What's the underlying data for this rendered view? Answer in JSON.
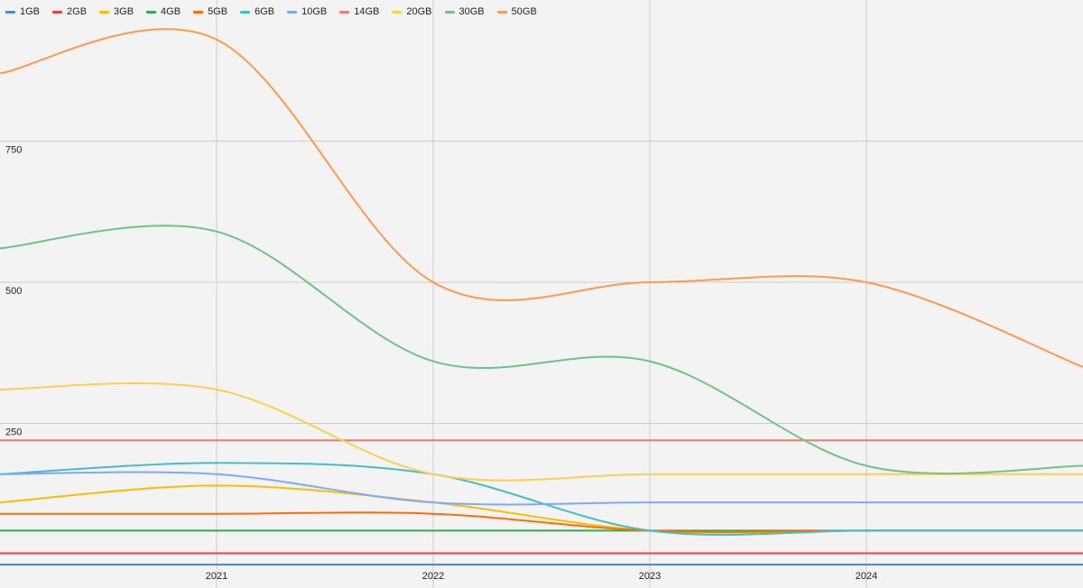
{
  "chart_data": {
    "type": "line",
    "title": "",
    "xlabel": "",
    "ylabel": "",
    "ylim": [
      0,
      1000
    ],
    "xlim": [
      2020.0,
      2025.0
    ],
    "x_ticks": [
      "2021",
      "2022",
      "2023",
      "2024"
    ],
    "x_tick_values": [
      2021,
      2022,
      2023,
      2024
    ],
    "y_ticks": [
      "250",
      "500",
      "750"
    ],
    "y_tick_values": [
      250,
      500,
      750
    ],
    "grid": true,
    "legend_position": "top-left",
    "series": [
      {
        "name": "1GB",
        "color": "#4a86e8",
        "x": [
          2020.0,
          2021,
          2022,
          2023,
          2024,
          2025
        ],
        "y": [
          0,
          0,
          0,
          0,
          0,
          0
        ]
      },
      {
        "name": "2GB",
        "color": "#ea4335",
        "x": [
          2020.0,
          2021,
          2022,
          2023,
          2024,
          2025
        ],
        "y": [
          20,
          20,
          20,
          20,
          20,
          20
        ]
      },
      {
        "name": "3GB",
        "color": "#fbbc04",
        "x": [
          2020.0,
          2021,
          2022,
          2023,
          2024,
          2025
        ],
        "y": [
          110,
          140,
          110,
          60,
          60,
          60
        ]
      },
      {
        "name": "4GB",
        "color": "#34a853",
        "x": [
          2020.0,
          2021,
          2022,
          2023,
          2024,
          2025
        ],
        "y": [
          60,
          60,
          60,
          60,
          60,
          60
        ]
      },
      {
        "name": "5GB",
        "color": "#ff6d01",
        "x": [
          2020.0,
          2021,
          2022,
          2023,
          2024,
          2025
        ],
        "y": [
          90,
          90,
          90,
          60,
          60,
          60
        ]
      },
      {
        "name": "6GB",
        "color": "#46bdc6",
        "x": [
          2020.0,
          2021,
          2022,
          2023,
          2024,
          2025
        ],
        "y": [
          160,
          180,
          160,
          60,
          60,
          60
        ]
      },
      {
        "name": "10GB",
        "color": "#7baaf7",
        "x": [
          2020.0,
          2021,
          2022,
          2023,
          2024,
          2025
        ],
        "y": [
          160,
          160,
          110,
          110,
          110,
          110
        ]
      },
      {
        "name": "14GB",
        "color": "#f07b72",
        "x": [
          2020.0,
          2021,
          2022,
          2023,
          2024,
          2025
        ],
        "y": [
          220,
          220,
          220,
          220,
          220,
          220
        ]
      },
      {
        "name": "20GB",
        "color": "#fcd04f",
        "x": [
          2020.0,
          2021,
          2022,
          2023,
          2024,
          2025
        ],
        "y": [
          310,
          310,
          160,
          160,
          160,
          160
        ]
      },
      {
        "name": "30GB",
        "color": "#71c287",
        "x": [
          2020.0,
          2021,
          2022,
          2023,
          2024,
          2025
        ],
        "y": [
          560,
          590,
          360,
          360,
          175,
          175
        ]
      },
      {
        "name": "50GB",
        "color": "#ff994d",
        "x": [
          2020.0,
          2021,
          2022,
          2023,
          2024,
          2025
        ],
        "y": [
          870,
          930,
          500,
          500,
          500,
          350
        ]
      }
    ]
  }
}
